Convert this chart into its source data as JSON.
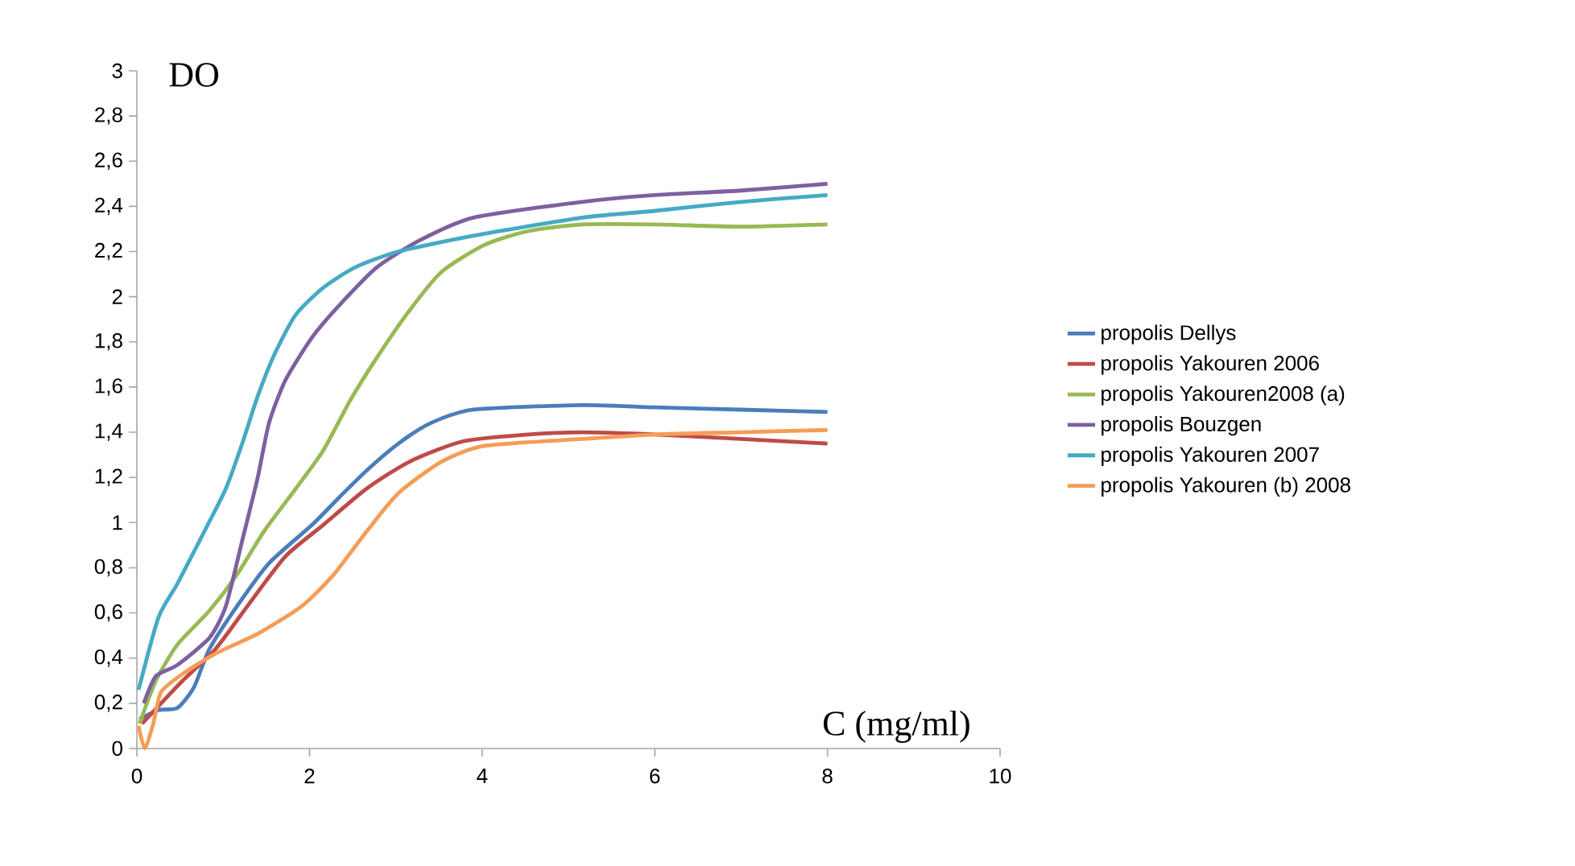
{
  "chart_data": {
    "type": "line",
    "xlabel": "C (mg/ml)",
    "ylabel": "DO",
    "xlim": [
      0,
      10
    ],
    "xticks": [
      0,
      2,
      4,
      6,
      8,
      10
    ],
    "ylim": [
      0,
      3
    ],
    "yticks": [
      0,
      {
        "value": 0.2,
        "label": "0,2"
      },
      {
        "value": 0.4,
        "label": "0,4"
      },
      {
        "value": 0.6,
        "label": "0,6"
      },
      {
        "value": 0.8,
        "label": "0,8"
      },
      1,
      {
        "value": 1.2,
        "label": "1,2"
      },
      {
        "value": 1.4,
        "label": "1,4"
      },
      {
        "value": 1.6,
        "label": "1,6"
      },
      {
        "value": 1.8,
        "label": "1,8"
      },
      2,
      {
        "value": 2.2,
        "label": "2,2"
      },
      {
        "value": 2.4,
        "label": "2,4"
      },
      {
        "value": 2.6,
        "label": "2,6"
      },
      {
        "value": 2.8,
        "label": "2,8"
      },
      3
    ],
    "grid": false,
    "legend": "right",
    "marker": "none",
    "line_style": "solid",
    "series": [
      {
        "name": "propolis Dellys",
        "color": "#4a7ebb",
        "x": [
          0.03,
          0.25,
          0.47,
          0.66,
          0.84,
          1.16,
          1.53,
          2.03,
          2.34,
          2.66,
          3.03,
          3.4,
          3.9,
          5.16,
          6,
          7,
          8
        ],
        "values": [
          0.13,
          0.17,
          0.18,
          0.27,
          0.44,
          0.63,
          0.82,
          0.99,
          1.11,
          1.23,
          1.35,
          1.44,
          1.5,
          1.52,
          1.51,
          1.5,
          1.49
        ]
      },
      {
        "name": "propolis Yakouren 2006",
        "color": "#be4b48",
        "x": [
          0.06,
          0.28,
          0.53,
          0.91,
          1.28,
          1.72,
          2.16,
          2.66,
          3.16,
          3.78,
          4.53,
          5.16,
          6,
          7,
          8
        ],
        "values": [
          0.11,
          0.2,
          0.3,
          0.44,
          0.63,
          0.85,
          0.99,
          1.15,
          1.27,
          1.36,
          1.39,
          1.4,
          1.39,
          1.37,
          1.35
        ]
      },
      {
        "name": "propolis Yakouren2008 (a)",
        "color": "#98b954",
        "x": [
          0.03,
          0.22,
          0.47,
          0.84,
          1.16,
          1.47,
          1.84,
          2.16,
          2.47,
          2.78,
          3.16,
          3.53,
          4.03,
          4.53,
          5.16,
          6,
          7,
          8
        ],
        "values": [
          0.11,
          0.3,
          0.46,
          0.61,
          0.77,
          0.96,
          1.15,
          1.32,
          1.54,
          1.73,
          1.94,
          2.11,
          2.23,
          2.29,
          2.32,
          2.32,
          2.31,
          2.32
        ]
      },
      {
        "name": "propolis Bouzgen",
        "color": "#7d60a0",
        "x": [
          0.08,
          0.22,
          0.47,
          0.84,
          1.03,
          1.22,
          1.4,
          1.53,
          1.72,
          2.03,
          2.34,
          2.78,
          3.28,
          3.9,
          5.16,
          6,
          7,
          8
        ],
        "values": [
          0.2,
          0.32,
          0.37,
          0.49,
          0.63,
          0.92,
          1.2,
          1.44,
          1.63,
          1.82,
          1.96,
          2.13,
          2.25,
          2.35,
          2.42,
          2.45,
          2.47,
          2.5
        ]
      },
      {
        "name": "propolis Yakouren 2007",
        "color": "#46aac5",
        "x": [
          0.02,
          0.25,
          0.47,
          0.78,
          1.03,
          1.22,
          1.4,
          1.6,
          1.84,
          2.16,
          2.53,
          3.03,
          3.9,
          5.16,
          6,
          7,
          8
        ],
        "values": [
          0.26,
          0.58,
          0.73,
          0.96,
          1.15,
          1.35,
          1.56,
          1.75,
          1.92,
          2.04,
          2.13,
          2.2,
          2.27,
          2.35,
          2.38,
          2.42,
          2.45
        ]
      },
      {
        "name": "propolis Yakouren (b) 2008",
        "color": "#f59d56",
        "x": [
          0.02,
          0.09,
          0.19,
          0.28,
          0.53,
          0.91,
          1.41,
          1.91,
          2.28,
          2.66,
          3.03,
          3.53,
          4.03,
          5.16,
          6,
          7,
          8
        ],
        "values": [
          0.1,
          0,
          0.11,
          0.25,
          0.33,
          0.42,
          0.51,
          0.63,
          0.77,
          0.96,
          1.13,
          1.27,
          1.34,
          1.37,
          1.39,
          1.4,
          1.41
        ]
      }
    ]
  }
}
